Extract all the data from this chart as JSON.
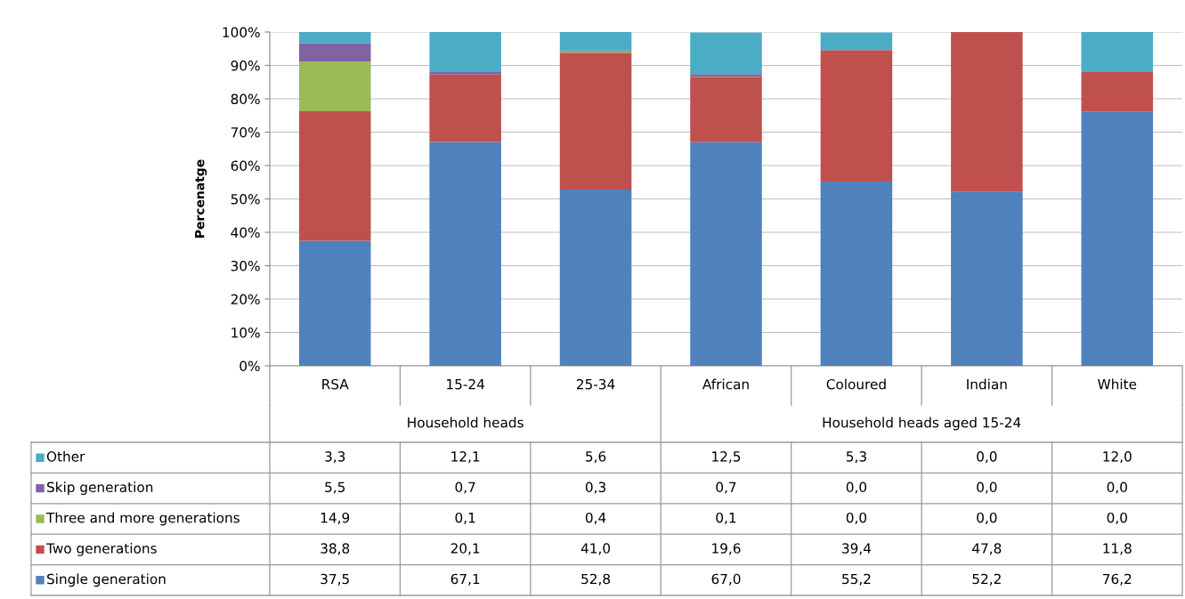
{
  "chart_data": {
    "type": "bar",
    "stacked": true,
    "ylabel": "Percenatge",
    "categories": [
      "RSA",
      "15-24",
      "25-34",
      "African",
      "Coloured",
      "Indian",
      "White"
    ],
    "annotations": [
      "Household heads",
      "Household heads aged 15-24"
    ],
    "series": [
      {
        "name": "Single generation",
        "color": "#4f81bd",
        "values": [
          37.5,
          67.1,
          52.8,
          67.0,
          55.2,
          52.2,
          76.2
        ],
        "value_labels": [
          "37,5",
          "67,1",
          "52,8",
          "67,0",
          "55,2",
          "52,2",
          "76,2"
        ]
      },
      {
        "name": "Two generations",
        "color": "#c0504d",
        "values": [
          38.8,
          20.1,
          41.0,
          19.6,
          39.4,
          47.8,
          11.8
        ],
        "value_labels": [
          "38,8",
          "20,1",
          "41,0",
          "19,6",
          "39,4",
          "47,8",
          "11,8"
        ]
      },
      {
        "name": "Three and more generations",
        "color": "#9bbb59",
        "values": [
          14.9,
          0.1,
          0.4,
          0.1,
          0.0,
          0.0,
          0.0
        ],
        "value_labels": [
          "14,9",
          "0,1",
          "0,4",
          "0,1",
          "0,0",
          "0,0",
          "0,0"
        ]
      },
      {
        "name": "Skip generation",
        "color": "#8064a2",
        "values": [
          5.5,
          0.7,
          0.3,
          0.7,
          0.0,
          0.0,
          0.0
        ],
        "value_labels": [
          "5,5",
          "0,7",
          "0,3",
          "0,7",
          "0,0",
          "0,0",
          "0,0"
        ]
      },
      {
        "name": "Other",
        "color": "#4bacc6",
        "values": [
          3.3,
          12.1,
          5.6,
          12.5,
          5.3,
          0.0,
          12.0
        ],
        "value_labels": [
          "3,3",
          "12,1",
          "5,6",
          "12,5",
          "5,3",
          "0,0",
          "12,0"
        ]
      }
    ],
    "ylim": [
      0,
      100
    ],
    "yticks": [
      {
        "value": 0,
        "label": "0%"
      },
      {
        "value": 10,
        "label": "10%"
      },
      {
        "value": 20,
        "label": "20%"
      },
      {
        "value": 30,
        "label": "30%"
      },
      {
        "value": 40,
        "label": "40%"
      },
      {
        "value": 50,
        "label": "50%"
      },
      {
        "value": 60,
        "label": "60%"
      },
      {
        "value": 70,
        "label": "70%"
      },
      {
        "value": 80,
        "label": "80%"
      },
      {
        "value": 90,
        "label": "90%"
      },
      {
        "value": 100,
        "label": "100%"
      }
    ],
    "grid": "y",
    "legend": "bottom"
  }
}
